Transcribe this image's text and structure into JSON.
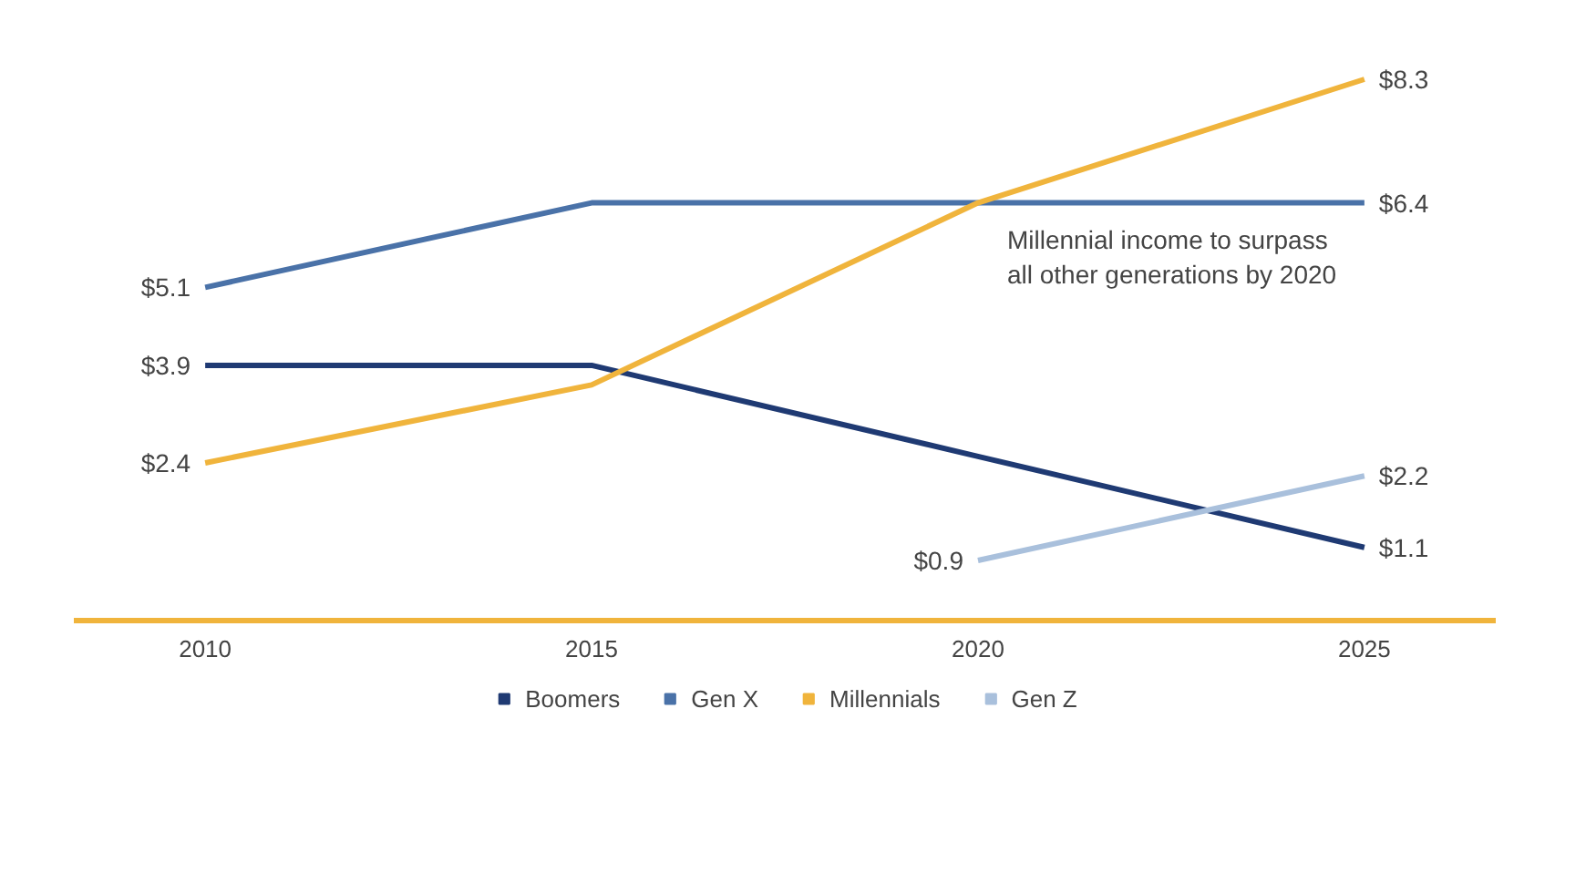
{
  "chart_data": {
    "type": "line",
    "x": [
      2010,
      2015,
      2020,
      2025
    ],
    "xlim": [
      2008.3,
      2026.7
    ],
    "xticks": [
      2010,
      2015,
      2020,
      2025
    ],
    "tick_labels": "x",
    "grid": false,
    "legend": "bottom",
    "marker": "none",
    "line_style": "solid",
    "data_labels": true,
    "series": [
      {
        "name": "Boomers",
        "color": "#1f3a73",
        "values": [
          3.9,
          3.9,
          2.5,
          1.1
        ],
        "value_labels": [
          "$3.9",
          null,
          null,
          "$1.1"
        ]
      },
      {
        "name": "Gen X",
        "color": "#4a72a8",
        "values": [
          5.1,
          6.4,
          6.4,
          6.4
        ],
        "value_labels": [
          "$5.1",
          null,
          null,
          "$6.4"
        ]
      },
      {
        "name": "Millennials",
        "color": "#f0b43c",
        "values": [
          2.4,
          3.6,
          6.4,
          8.3
        ],
        "value_labels": [
          "$2.4",
          null,
          null,
          "$8.3"
        ]
      },
      {
        "name": "Gen Z",
        "color": "#a9c0dc",
        "values": [
          null,
          null,
          0.9,
          2.2
        ],
        "value_labels": [
          null,
          null,
          "$0.9",
          "$2.2"
        ]
      }
    ],
    "annotations": [
      {
        "text": "Millennial income to surpass\nall other generations by 2020",
        "x": 2020,
        "y": 6.4
      }
    ]
  }
}
